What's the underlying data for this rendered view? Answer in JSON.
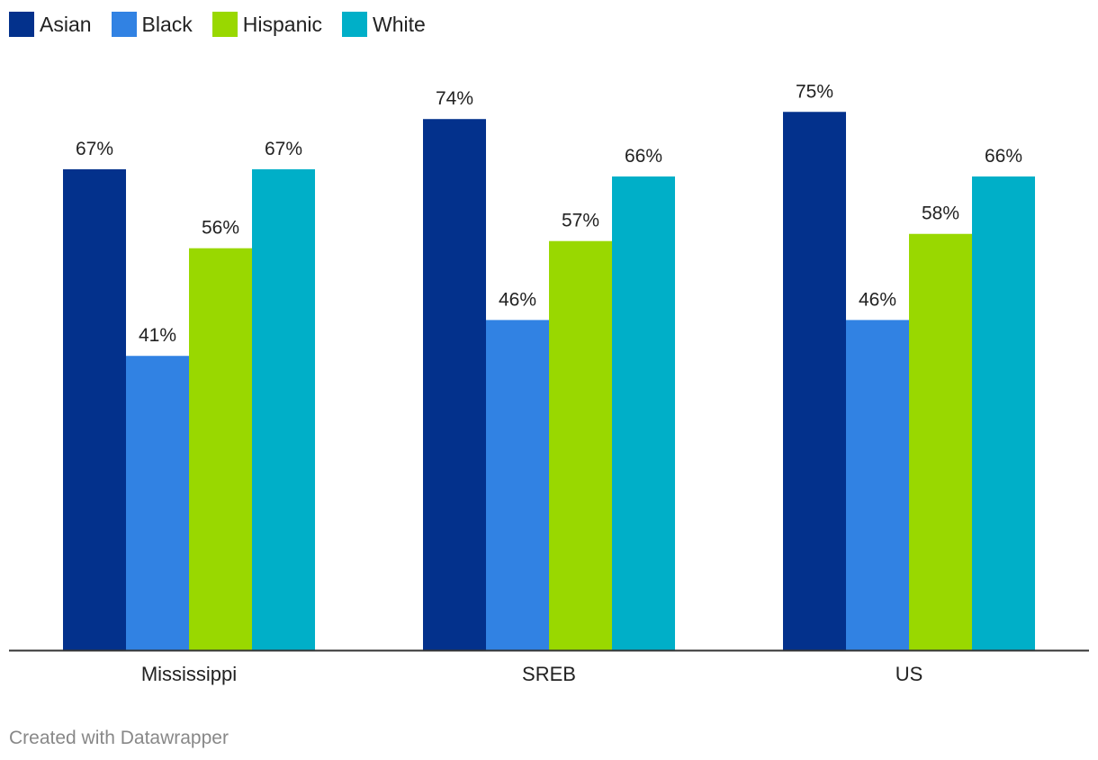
{
  "chart_data": {
    "type": "bar",
    "categories": [
      "Mississippi",
      "SREB",
      "US"
    ],
    "series": [
      {
        "name": "Asian",
        "color": "#03318c",
        "values": [
          67,
          74,
          75
        ]
      },
      {
        "name": "Black",
        "color": "#3182e3",
        "values": [
          41,
          46,
          46
        ]
      },
      {
        "name": "Hispanic",
        "color": "#99d800",
        "values": [
          56,
          57,
          58
        ]
      },
      {
        "name": "White",
        "color": "#00afc8",
        "values": [
          67,
          66,
          66
        ]
      }
    ],
    "value_suffix": "%",
    "ylim": [
      0,
      100
    ],
    "grid": false,
    "legend_position": "top-left"
  },
  "footer": {
    "credit": "Created with Datawrapper"
  }
}
